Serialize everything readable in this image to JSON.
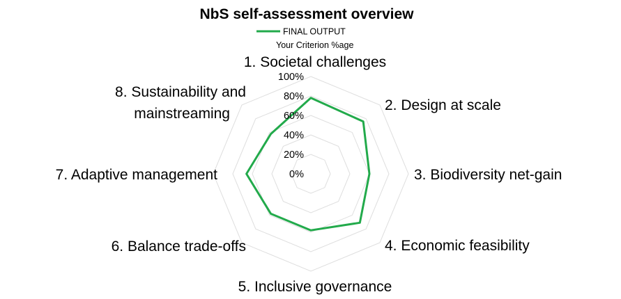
{
  "chart_data": {
    "type": "radar",
    "title": "NbS self-assessment overview",
    "legend": {
      "placement": "top-center",
      "entries": [
        {
          "name": "FINAL OUTPUT",
          "subtitle": "Your Criterion %age",
          "color": "#22aa4b"
        }
      ]
    },
    "axis": {
      "min": 0,
      "max": 100,
      "ticks": [
        0,
        20,
        40,
        60,
        80,
        100
      ],
      "tick_labels": [
        "0%",
        "20%",
        "40%",
        "60%",
        "80%",
        "100%"
      ],
      "grid": true,
      "grid_color": "#dedede"
    },
    "categories": [
      {
        "label": "1. Societal challenges"
      },
      {
        "label": "2. Design at scale"
      },
      {
        "label": "3. Biodiversity net-gain"
      },
      {
        "label": "4. Economic feasibility"
      },
      {
        "label": "5. Inclusive governance"
      },
      {
        "label": "6. Balance trade-offs"
      },
      {
        "label": "7. Adaptive management"
      },
      {
        "label": "8. Sustainability and",
        "label2": "mainstreaming"
      }
    ],
    "series": [
      {
        "name": "FINAL OUTPUT",
        "color": "#22aa4b",
        "values": [
          78,
          76,
          60,
          71,
          58,
          58,
          66,
          58
        ]
      }
    ]
  }
}
